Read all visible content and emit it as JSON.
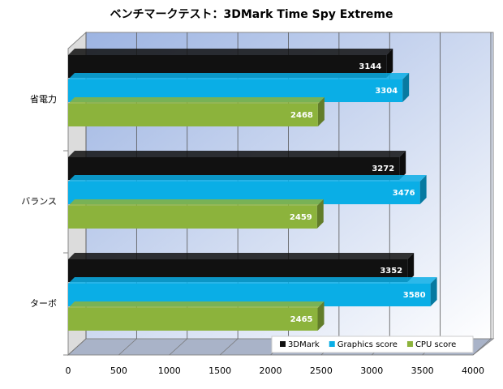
{
  "chart_data": {
    "type": "bar",
    "orientation": "horizontal",
    "title": "ベンチマークテスト：3DMark Time Spy Extreme",
    "categories": [
      "省電力",
      "バランス",
      "ターボ"
    ],
    "series": [
      {
        "name": "3DMark",
        "color": "#111111",
        "values": [
          3144,
          3272,
          3352
        ]
      },
      {
        "name": "Graphics score",
        "color": "#0aaee6",
        "values": [
          3304,
          3476,
          3580
        ]
      },
      {
        "name": "CPU score",
        "color": "#8cb33c",
        "values": [
          2468,
          2459,
          2465
        ]
      }
    ],
    "xlim": [
      0,
      4000
    ],
    "xticks": [
      0,
      500,
      1000,
      1500,
      2000,
      2500,
      3000,
      3500,
      4000
    ],
    "grid": true,
    "legend": "bottom-right"
  }
}
